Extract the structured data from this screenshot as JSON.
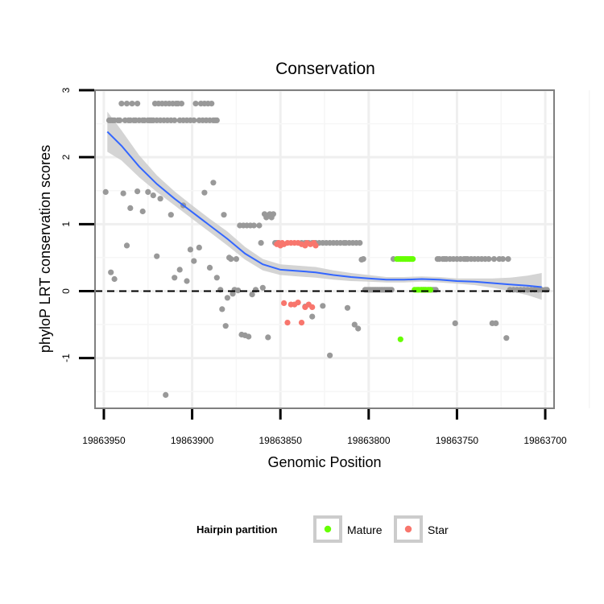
{
  "chart_data": {
    "type": "scatter",
    "title": "Conservation",
    "xlabel": "Genomic Position",
    "ylabel": "phyloP LRT conservation scores",
    "x_reversed": true,
    "xlim": [
      19863955,
      19863695
    ],
    "ylim": [
      -1.75,
      3.0
    ],
    "x_ticks": [
      19863950,
      19863900,
      19863850,
      19863800,
      19863750,
      19863700
    ],
    "x_tick_labels": [
      "19863950",
      "19863900",
      "19863850",
      "19863800",
      "19863750",
      "19863700"
    ],
    "y_ticks": [
      -1,
      0,
      1,
      2,
      3
    ],
    "y_tick_labels": [
      "-1",
      "0",
      "1",
      "2",
      "3"
    ],
    "reference_line": {
      "y": 0,
      "style": "dashed",
      "color": "#000000"
    },
    "legend": {
      "title": "Hairpin partition",
      "position": "bottom",
      "entries": [
        {
          "label": "Mature",
          "color": "#66ff00"
        },
        {
          "label": "Star",
          "color": "#f8766d"
        }
      ]
    },
    "colors": {
      "other": "#999999",
      "mature": "#66ff00",
      "star": "#f8766d",
      "smooth_line": "#3366ff",
      "ribbon": "#cccccc"
    },
    "series": [
      {
        "name": "Other",
        "points": [
          [
            19863947,
            2.55
          ],
          [
            19863946,
            2.55
          ],
          [
            19863945,
            2.55
          ],
          [
            19863944,
            2.55
          ],
          [
            19863942,
            2.55
          ],
          [
            19863941,
            2.55
          ],
          [
            19863940,
            2.8
          ],
          [
            19863938,
            2.55
          ],
          [
            19863937,
            2.8
          ],
          [
            19863936,
            2.55
          ],
          [
            19863935,
            2.55
          ],
          [
            19863934,
            2.8
          ],
          [
            19863933,
            2.55
          ],
          [
            19863932,
            2.55
          ],
          [
            19863931,
            2.8
          ],
          [
            19863930,
            2.55
          ],
          [
            19863928,
            2.55
          ],
          [
            19863927,
            2.55
          ],
          [
            19863925,
            2.55
          ],
          [
            19863924,
            2.55
          ],
          [
            19863923,
            2.55
          ],
          [
            19863922,
            2.55
          ],
          [
            19863921,
            2.8
          ],
          [
            19863920,
            2.55
          ],
          [
            19863919,
            2.8
          ],
          [
            19863918,
            2.55
          ],
          [
            19863917,
            2.8
          ],
          [
            19863916,
            2.55
          ],
          [
            19863915,
            2.8
          ],
          [
            19863914,
            2.55
          ],
          [
            19863913,
            2.8
          ],
          [
            19863912,
            2.55
          ],
          [
            19863911,
            2.8
          ],
          [
            19863910,
            2.55
          ],
          [
            19863909,
            2.8
          ],
          [
            19863908,
            2.8
          ],
          [
            19863907,
            2.55
          ],
          [
            19863906,
            2.8
          ],
          [
            19863905,
            2.55
          ],
          [
            19863903,
            2.55
          ],
          [
            19863901,
            2.55
          ],
          [
            19863899,
            2.55
          ],
          [
            19863898,
            2.8
          ],
          [
            19863896,
            2.55
          ],
          [
            19863895,
            2.8
          ],
          [
            19863894,
            2.55
          ],
          [
            19863893,
            2.8
          ],
          [
            19863892,
            2.55
          ],
          [
            19863891,
            2.8
          ],
          [
            19863890,
            2.55
          ],
          [
            19863889,
            2.8
          ],
          [
            19863888,
            2.55
          ],
          [
            19863887,
            2.55
          ],
          [
            19863886,
            2.55
          ],
          [
            19863949,
            1.48
          ],
          [
            19863946,
            0.28
          ],
          [
            19863944,
            0.18
          ],
          [
            19863939,
            1.46
          ],
          [
            19863937,
            0.68
          ],
          [
            19863935,
            1.24
          ],
          [
            19863931,
            1.49
          ],
          [
            19863928,
            1.19
          ],
          [
            19863925,
            1.48
          ],
          [
            19863922,
            1.43
          ],
          [
            19863920,
            0.52
          ],
          [
            19863918,
            1.38
          ],
          [
            19863915,
            -1.55
          ],
          [
            19863912,
            1.14
          ],
          [
            19863910,
            0.2
          ],
          [
            19863907,
            0.32
          ],
          [
            19863905,
            1.28
          ],
          [
            19863903,
            0.15
          ],
          [
            19863901,
            0.62
          ],
          [
            19863899,
            0.45
          ],
          [
            19863896,
            0.65
          ],
          [
            19863893,
            1.47
          ],
          [
            19863890,
            0.35
          ],
          [
            19863888,
            1.62
          ],
          [
            19863886,
            0.2
          ],
          [
            19863884,
            0.02
          ],
          [
            19863883,
            -0.27
          ],
          [
            19863882,
            1.14
          ],
          [
            19863881,
            -0.52
          ],
          [
            19863880,
            -0.1
          ],
          [
            19863879,
            0.5
          ],
          [
            19863878,
            0.48
          ],
          [
            19863877,
            -0.04
          ],
          [
            19863876,
            0.02
          ],
          [
            19863875,
            0.48
          ],
          [
            19863874,
            0.01
          ],
          [
            19863873,
            0.98
          ],
          [
            19863872,
            -0.65
          ],
          [
            19863871,
            0.98
          ],
          [
            19863870,
            -0.66
          ],
          [
            19863869,
            0.98
          ],
          [
            19863868,
            -0.68
          ],
          [
            19863867,
            0.98
          ],
          [
            19863866,
            -0.05
          ],
          [
            19863865,
            0.98
          ],
          [
            19863864,
            0.02
          ],
          [
            19863862,
            0.98
          ],
          [
            19863861,
            0.72
          ],
          [
            19863860,
            0.05
          ],
          [
            19863859,
            1.15
          ],
          [
            19863858,
            1.1
          ],
          [
            19863857,
            -0.69
          ],
          [
            19863856,
            1.15
          ],
          [
            19863855,
            1.1
          ],
          [
            19863854,
            1.15
          ],
          [
            19863853,
            0.72
          ],
          [
            19863852,
            0.72
          ],
          [
            19863851,
            0.72
          ],
          [
            19863838,
            0.72
          ],
          [
            19863836,
            0.72
          ],
          [
            19863834,
            0.72
          ],
          [
            19863832,
            0.72
          ],
          [
            19863830,
            0.72
          ],
          [
            19863828,
            0.72
          ],
          [
            19863826,
            0.72
          ],
          [
            19863824,
            0.72
          ],
          [
            19863822,
            0.72
          ],
          [
            19863820,
            0.72
          ],
          [
            19863818,
            0.72
          ],
          [
            19863816,
            0.72
          ],
          [
            19863814,
            0.72
          ],
          [
            19863813,
            0.72
          ],
          [
            19863811,
            0.72
          ],
          [
            19863809,
            0.72
          ],
          [
            19863807,
            0.72
          ],
          [
            19863805,
            0.72
          ],
          [
            19863836,
            -0.23
          ],
          [
            19863832,
            -0.38
          ],
          [
            19863826,
            -0.22
          ],
          [
            19863822,
            -0.96
          ],
          [
            19863812,
            -0.25
          ],
          [
            19863808,
            -0.5
          ],
          [
            19863806,
            -0.56
          ],
          [
            19863804,
            0.47
          ],
          [
            19863803,
            0.48
          ],
          [
            19863802,
            0.02
          ],
          [
            19863801,
            0.02
          ],
          [
            19863800,
            0.02
          ],
          [
            19863799,
            0.02
          ],
          [
            19863798,
            0.02
          ],
          [
            19863797,
            0.02
          ],
          [
            19863796,
            0.02
          ],
          [
            19863795,
            0.02
          ],
          [
            19863794,
            0.02
          ],
          [
            19863793,
            0.02
          ],
          [
            19863792,
            0.02
          ],
          [
            19863791,
            0.02
          ],
          [
            19863790,
            0.02
          ],
          [
            19863789,
            0.02
          ],
          [
            19863788,
            0.02
          ],
          [
            19863787,
            0.02
          ],
          [
            19863786,
            0.48
          ],
          [
            19863772,
            0.02
          ],
          [
            19863770,
            0.02
          ],
          [
            19863769,
            0.02
          ],
          [
            19863768,
            0.02
          ],
          [
            19863766,
            0.02
          ],
          [
            19863765,
            0.02
          ],
          [
            19863764,
            0.02
          ],
          [
            19863763,
            0.02
          ],
          [
            19863762,
            0.02
          ],
          [
            19863761,
            0.48
          ],
          [
            19863760,
            0.48
          ],
          [
            19863758,
            0.48
          ],
          [
            19863757,
            0.48
          ],
          [
            19863756,
            0.48
          ],
          [
            19863754,
            0.48
          ],
          [
            19863752,
            0.48
          ],
          [
            19863751,
            -0.48
          ],
          [
            19863750,
            0.48
          ],
          [
            19863748,
            0.48
          ],
          [
            19863746,
            0.48
          ],
          [
            19863745,
            0.48
          ],
          [
            19863744,
            0.48
          ],
          [
            19863742,
            0.48
          ],
          [
            19863740,
            0.48
          ],
          [
            19863738,
            0.48
          ],
          [
            19863736,
            0.48
          ],
          [
            19863734,
            0.48
          ],
          [
            19863732,
            0.48
          ],
          [
            19863730,
            -0.48
          ],
          [
            19863729,
            0.48
          ],
          [
            19863728,
            -0.48
          ],
          [
            19863726,
            0.48
          ],
          [
            19863724,
            0.48
          ],
          [
            19863722,
            -0.7
          ],
          [
            19863721,
            0.48
          ],
          [
            19863720,
            0.02
          ],
          [
            19863718,
            0.02
          ],
          [
            19863716,
            0.02
          ],
          [
            19863714,
            0.02
          ],
          [
            19863712,
            0.02
          ],
          [
            19863710,
            0.02
          ],
          [
            19863708,
            0.02
          ],
          [
            19863706,
            0.02
          ],
          [
            19863704,
            0.02
          ],
          [
            19863702,
            0.02
          ],
          [
            19863700,
            0.02
          ],
          [
            19863699,
            0.02
          ]
        ]
      },
      {
        "name": "Mature",
        "points": [
          [
            19863784,
            0.48
          ],
          [
            19863783,
            0.48
          ],
          [
            19863782,
            0.48
          ],
          [
            19863781,
            0.48
          ],
          [
            19863780,
            0.48
          ],
          [
            19863779,
            0.48
          ],
          [
            19863778,
            0.48
          ],
          [
            19863777,
            0.48
          ],
          [
            19863776,
            0.48
          ],
          [
            19863775,
            0.48
          ],
          [
            19863774,
            0.02
          ],
          [
            19863773,
            0.02
          ],
          [
            19863772,
            0.02
          ],
          [
            19863771,
            0.02
          ],
          [
            19863770,
            0.02
          ],
          [
            19863769,
            0.02
          ],
          [
            19863768,
            0.02
          ],
          [
            19863767,
            0.02
          ],
          [
            19863766,
            0.02
          ],
          [
            19863765,
            0.02
          ],
          [
            19863782,
            -0.72
          ]
        ]
      },
      {
        "name": "Star",
        "points": [
          [
            19863852,
            0.7
          ],
          [
            19863851,
            0.72
          ],
          [
            19863850,
            0.68
          ],
          [
            19863849,
            0.72
          ],
          [
            19863848,
            0.7
          ],
          [
            19863846,
            0.72
          ],
          [
            19863844,
            0.72
          ],
          [
            19863842,
            0.72
          ],
          [
            19863840,
            0.72
          ],
          [
            19863838,
            0.7
          ],
          [
            19863836,
            0.68
          ],
          [
            19863835,
            0.72
          ],
          [
            19863833,
            0.7
          ],
          [
            19863831,
            0.72
          ],
          [
            19863830,
            0.68
          ],
          [
            19863848,
            -0.18
          ],
          [
            19863846,
            -0.47
          ],
          [
            19863844,
            -0.2
          ],
          [
            19863842,
            -0.2
          ],
          [
            19863840,
            -0.17
          ],
          [
            19863838,
            -0.47
          ],
          [
            19863836,
            -0.24
          ],
          [
            19863834,
            -0.2
          ],
          [
            19863832,
            -0.24
          ]
        ]
      }
    ],
    "smooth": {
      "method": "loess",
      "x": [
        19863948,
        19863940,
        19863930,
        19863920,
        19863910,
        19863900,
        19863890,
        19863880,
        19863870,
        19863860,
        19863850,
        19863840,
        19863830,
        19863820,
        19863810,
        19863800,
        19863790,
        19863780,
        19863770,
        19863760,
        19863750,
        19863740,
        19863730,
        19863720,
        19863710,
        19863702
      ],
      "y": [
        2.38,
        2.17,
        1.86,
        1.6,
        1.38,
        1.18,
        0.98,
        0.78,
        0.56,
        0.4,
        0.32,
        0.3,
        0.28,
        0.24,
        0.21,
        0.19,
        0.17,
        0.17,
        0.18,
        0.17,
        0.15,
        0.14,
        0.12,
        0.1,
        0.08,
        0.06
      ],
      "lower": [
        2.08,
        1.95,
        1.7,
        1.48,
        1.28,
        1.08,
        0.88,
        0.68,
        0.47,
        0.31,
        0.24,
        0.22,
        0.2,
        0.17,
        0.15,
        0.14,
        0.13,
        0.13,
        0.14,
        0.13,
        0.11,
        0.09,
        0.05,
        0.0,
        -0.06,
        -0.13
      ],
      "upper": [
        2.68,
        2.4,
        2.03,
        1.73,
        1.49,
        1.28,
        1.08,
        0.89,
        0.66,
        0.48,
        0.4,
        0.38,
        0.36,
        0.31,
        0.27,
        0.24,
        0.21,
        0.21,
        0.22,
        0.21,
        0.19,
        0.19,
        0.19,
        0.2,
        0.23,
        0.27
      ]
    }
  }
}
